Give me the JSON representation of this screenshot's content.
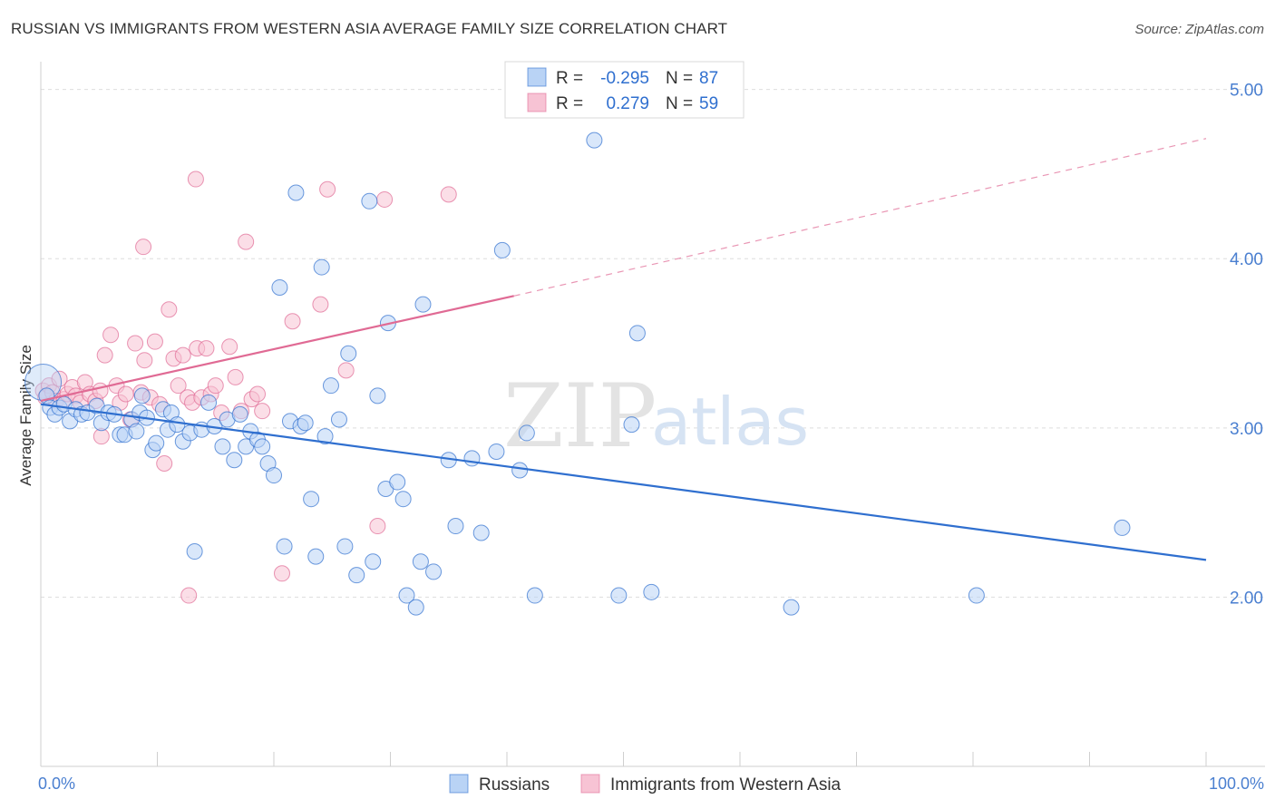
{
  "title": "RUSSIAN VS IMMIGRANTS FROM WESTERN ASIA AVERAGE FAMILY SIZE CORRELATION CHART",
  "source": "Source: ZipAtlas.com",
  "watermark": {
    "zip": "ZIP",
    "atlas": "atlas"
  },
  "colors": {
    "blue": "#2f6fcf",
    "blue_fill": "#b9d3f5",
    "pink": "#e06a94",
    "pink_fill": "#f7c3d4",
    "tick": "#4a7fd0",
    "grid": "#dddddd"
  },
  "legend": {
    "rows": [
      {
        "r_label": "R =",
        "r_value": "-0.295",
        "n_label": "N =",
        "n_value": "87",
        "series": "blue"
      },
      {
        "r_label": "R =",
        "r_value": "0.279",
        "n_label": "N =",
        "n_value": "59",
        "series": "pink"
      }
    ]
  },
  "bottom_legend": [
    {
      "label": "Russians",
      "series": "blue"
    },
    {
      "label": "Immigrants from Western Asia",
      "series": "pink"
    }
  ],
  "chart_data": {
    "type": "scatter",
    "title": "RUSSIAN VS IMMIGRANTS FROM WESTERN ASIA AVERAGE FAMILY SIZE CORRELATION CHART",
    "xlabel": "",
    "ylabel": "Average Family Size",
    "xlim": [
      0,
      100
    ],
    "ylim": [
      1.0,
      5.1
    ],
    "x_tick_labels": [
      "0.0%",
      "100.0%"
    ],
    "y_ticks": [
      2.0,
      3.0,
      4.0,
      5.0
    ],
    "y_tick_labels": [
      "2.00",
      "3.00",
      "4.00",
      "5.00"
    ],
    "grid": "horizontal dashed",
    "legend_position": "top-center",
    "series": [
      {
        "name": "Russians",
        "color": "#2f6fcf",
        "r": -0.295,
        "n": 87,
        "trend": {
          "x": [
            0,
            100
          ],
          "y": [
            3.14,
            2.22
          ],
          "style": "solid"
        },
        "points": [
          [
            0.2,
            3.27
          ],
          [
            0.5,
            3.19
          ],
          [
            0.8,
            3.12
          ],
          [
            1.2,
            3.08
          ],
          [
            1.6,
            3.12
          ],
          [
            2.0,
            3.14
          ],
          [
            2.5,
            3.04
          ],
          [
            3.0,
            3.11
          ],
          [
            3.5,
            3.08
          ],
          [
            4.0,
            3.09
          ],
          [
            4.8,
            3.13
          ],
          [
            5.2,
            3.03
          ],
          [
            5.8,
            3.09
          ],
          [
            6.3,
            3.08
          ],
          [
            6.8,
            2.96
          ],
          [
            7.2,
            2.96
          ],
          [
            7.8,
            3.05
          ],
          [
            8.2,
            2.98
          ],
          [
            8.5,
            3.09
          ],
          [
            8.7,
            3.19
          ],
          [
            9.1,
            3.06
          ],
          [
            9.6,
            2.87
          ],
          [
            9.9,
            2.91
          ],
          [
            10.5,
            3.11
          ],
          [
            10.9,
            2.99
          ],
          [
            11.2,
            3.09
          ],
          [
            11.7,
            3.02
          ],
          [
            12.2,
            2.92
          ],
          [
            12.8,
            2.97
          ],
          [
            13.2,
            2.27
          ],
          [
            13.8,
            2.99
          ],
          [
            14.4,
            3.15
          ],
          [
            14.9,
            3.01
          ],
          [
            15.6,
            2.89
          ],
          [
            16.0,
            3.05
          ],
          [
            16.6,
            2.81
          ],
          [
            17.1,
            3.08
          ],
          [
            17.6,
            2.89
          ],
          [
            18.0,
            2.98
          ],
          [
            18.6,
            2.93
          ],
          [
            19.0,
            2.89
          ],
          [
            19.5,
            2.79
          ],
          [
            20.0,
            2.72
          ],
          [
            20.5,
            3.83
          ],
          [
            20.9,
            2.3
          ],
          [
            21.4,
            3.04
          ],
          [
            21.9,
            4.39
          ],
          [
            22.3,
            3.01
          ],
          [
            22.7,
            3.03
          ],
          [
            23.2,
            2.58
          ],
          [
            23.6,
            2.24
          ],
          [
            24.1,
            3.95
          ],
          [
            24.4,
            2.95
          ],
          [
            24.9,
            3.25
          ],
          [
            25.6,
            3.05
          ],
          [
            26.1,
            2.3
          ],
          [
            26.4,
            3.44
          ],
          [
            27.1,
            2.13
          ],
          [
            28.2,
            4.34
          ],
          [
            28.5,
            2.21
          ],
          [
            28.9,
            3.19
          ],
          [
            29.6,
            2.64
          ],
          [
            29.8,
            3.62
          ],
          [
            30.6,
            2.68
          ],
          [
            31.1,
            2.58
          ],
          [
            31.4,
            2.01
          ],
          [
            32.2,
            1.94
          ],
          [
            32.6,
            2.21
          ],
          [
            32.8,
            3.73
          ],
          [
            33.7,
            2.15
          ],
          [
            35.0,
            2.81
          ],
          [
            35.6,
            2.42
          ],
          [
            37.0,
            2.82
          ],
          [
            37.8,
            2.38
          ],
          [
            39.1,
            2.86
          ],
          [
            39.6,
            4.05
          ],
          [
            41.1,
            2.75
          ],
          [
            41.7,
            2.97
          ],
          [
            42.4,
            2.01
          ],
          [
            47.5,
            4.7
          ],
          [
            49.6,
            2.01
          ],
          [
            50.7,
            3.02
          ],
          [
            51.2,
            3.56
          ],
          [
            52.4,
            2.03
          ],
          [
            64.4,
            1.94
          ],
          [
            80.3,
            2.01
          ],
          [
            92.8,
            2.41
          ]
        ]
      },
      {
        "name": "Immigrants from Western Asia",
        "color": "#e06a94",
        "r": 0.279,
        "n": 59,
        "trend": {
          "x": [
            0,
            40.6,
            100
          ],
          "y": [
            3.16,
            3.78,
            4.71
          ],
          "style": "solid-then-dashed"
        },
        "points": [
          [
            0.2,
            3.22
          ],
          [
            0.4,
            3.18
          ],
          [
            0.7,
            3.25
          ],
          [
            1.0,
            3.21
          ],
          [
            1.3,
            3.16
          ],
          [
            1.6,
            3.29
          ],
          [
            2.0,
            3.17
          ],
          [
            2.3,
            3.2
          ],
          [
            2.7,
            3.24
          ],
          [
            3.0,
            3.19
          ],
          [
            3.4,
            3.15
          ],
          [
            3.8,
            3.27
          ],
          [
            4.2,
            3.2
          ],
          [
            4.7,
            3.16
          ],
          [
            5.1,
            3.22
          ],
          [
            5.5,
            3.43
          ],
          [
            6.0,
            3.55
          ],
          [
            6.5,
            3.25
          ],
          [
            6.8,
            3.15
          ],
          [
            7.3,
            3.2
          ],
          [
            7.7,
            3.05
          ],
          [
            8.1,
            3.5
          ],
          [
            8.6,
            3.21
          ],
          [
            8.9,
            3.4
          ],
          [
            9.4,
            3.18
          ],
          [
            9.8,
            3.51
          ],
          [
            10.2,
            3.14
          ],
          [
            10.6,
            2.79
          ],
          [
            11.0,
            3.7
          ],
          [
            11.4,
            3.41
          ],
          [
            11.8,
            3.25
          ],
          [
            12.2,
            3.43
          ],
          [
            12.6,
            3.18
          ],
          [
            13.0,
            3.15
          ],
          [
            13.4,
            3.47
          ],
          [
            13.8,
            3.18
          ],
          [
            14.2,
            3.47
          ],
          [
            14.6,
            3.2
          ],
          [
            15.0,
            3.25
          ],
          [
            15.5,
            3.09
          ],
          [
            16.2,
            3.48
          ],
          [
            16.7,
            3.3
          ],
          [
            17.2,
            3.1
          ],
          [
            17.6,
            4.1
          ],
          [
            18.1,
            3.17
          ],
          [
            18.6,
            3.2
          ],
          [
            19.0,
            3.1
          ],
          [
            20.7,
            2.14
          ],
          [
            21.6,
            3.63
          ],
          [
            24.0,
            3.73
          ],
          [
            24.6,
            4.41
          ],
          [
            26.2,
            3.34
          ],
          [
            28.9,
            2.42
          ],
          [
            29.5,
            4.35
          ],
          [
            35.0,
            4.38
          ],
          [
            12.7,
            2.01
          ],
          [
            13.3,
            4.47
          ],
          [
            5.2,
            2.95
          ],
          [
            8.8,
            4.07
          ]
        ]
      }
    ]
  }
}
